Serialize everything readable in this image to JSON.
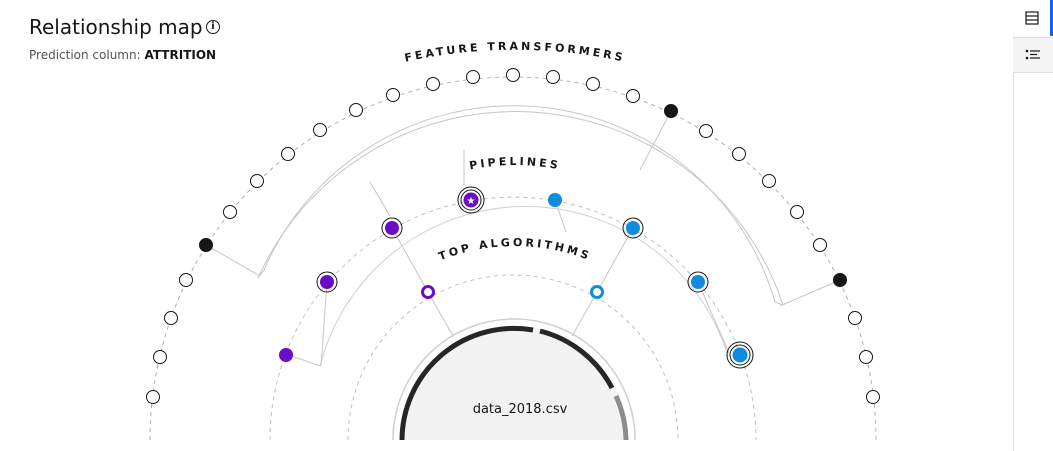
{
  "header": {
    "title": "Relationship map",
    "subtitle_label": "Prediction column:",
    "subtitle_value": "ATTRITION"
  },
  "rings": {
    "outer_label": "FEATURE TRANSFORMERS",
    "middle_label": "PIPELINES",
    "inner_label": "TOP ALGORITHMS",
    "center_label": "data_2018.csv"
  },
  "colors": {
    "purple": "#6a0dc7",
    "blue": "#0f8be0",
    "dark": "#161616",
    "accent": "#0f62fe"
  },
  "icons": {
    "info": "info-icon",
    "side_top": "list-view-icon",
    "side_second": "bullet-list-icon"
  }
}
